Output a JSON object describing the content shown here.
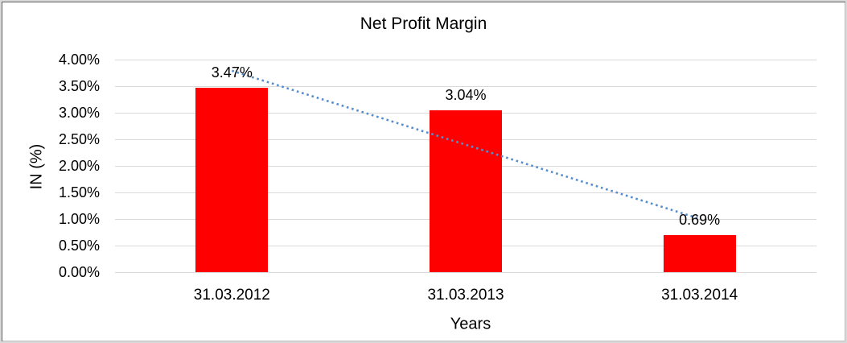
{
  "window": {
    "background": "#ffffff",
    "outer_border_color": "#d9d9d9",
    "inner_border_color": "#5f5f5f"
  },
  "chart_data": {
    "type": "bar",
    "title": "Net Profit Margin",
    "xlabel": "Years",
    "ylabel": "IN (%)",
    "categories": [
      "31.03.2012",
      "31.03.2013",
      "31.03.2014"
    ],
    "values": [
      3.47,
      3.04,
      0.69
    ],
    "value_labels": [
      "3.47%",
      "3.04%",
      "0.69%"
    ],
    "bar_color": "#ff0000",
    "ylim": [
      0,
      4
    ],
    "ytick_step": 0.5,
    "ytick_labels_top_to_bottom": [
      "4.00%",
      "3.50%",
      "3.00%",
      "2.50%",
      "2.00%",
      "1.50%",
      "1.00%",
      "0.50%",
      "0.00%"
    ],
    "grid": true,
    "gridline_color": "#d9d9d9",
    "legend": "none",
    "trendline": {
      "type": "linear",
      "style": "dotted",
      "color": "#568ecd",
      "start_value": 3.79,
      "end_value": 1.005
    }
  }
}
